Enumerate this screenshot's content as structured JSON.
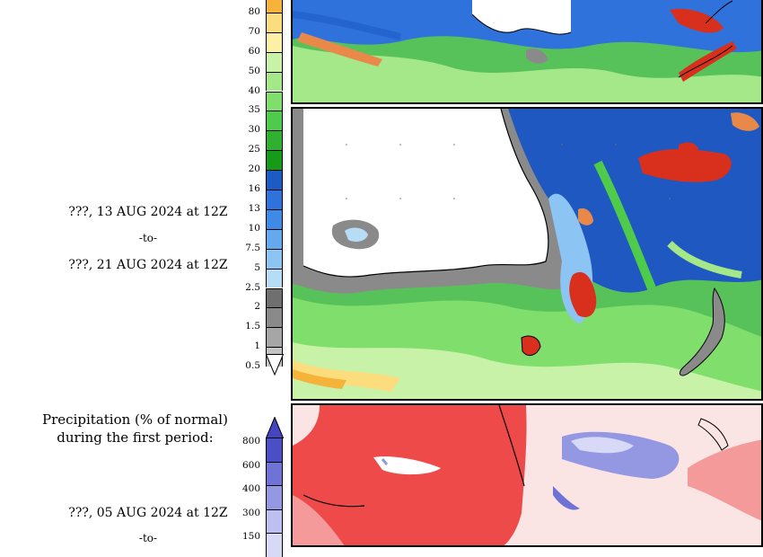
{
  "precip_period": {
    "start": "???, 13 AUG 2024 at 12Z",
    "to": "-to-",
    "end": "???, 21 AUG 2024 at 12Z"
  },
  "normal_period": {
    "caption_line1": "Precipitation (% of normal)",
    "caption_line2": "during the first period:",
    "start": "???, 05 AUG 2024 at 12Z",
    "to": "-to-"
  },
  "precip_scale": {
    "ticks": [
      "80",
      "70",
      "60",
      "50",
      "40",
      "35",
      "30",
      "25",
      "20",
      "16",
      "13",
      "10",
      "7.5",
      "5",
      "2.5",
      "2",
      "1.5",
      "1",
      "0.5"
    ],
    "colors": [
      "#f5b33a",
      "#fbdd7e",
      "#fcefa6",
      "#c8f2a8",
      "#a4e88a",
      "#7fde6c",
      "#4fcb4b",
      "#2fb02e",
      "#179a18",
      "#1c5bc4",
      "#2f72dc",
      "#3f8ae6",
      "#64a8ee",
      "#8cc4f3",
      "#b7dcf6",
      "#6f6f6f",
      "#8a8a8a",
      "#a6a6a6",
      "#c3c3c3"
    ]
  },
  "normal_scale": {
    "ticks": [
      "800",
      "600",
      "400",
      "300",
      "150"
    ],
    "colors": [
      "#4a4fc6",
      "#6f73d6",
      "#9498e2",
      "#bcbff0",
      "#d8d9f6"
    ]
  }
}
